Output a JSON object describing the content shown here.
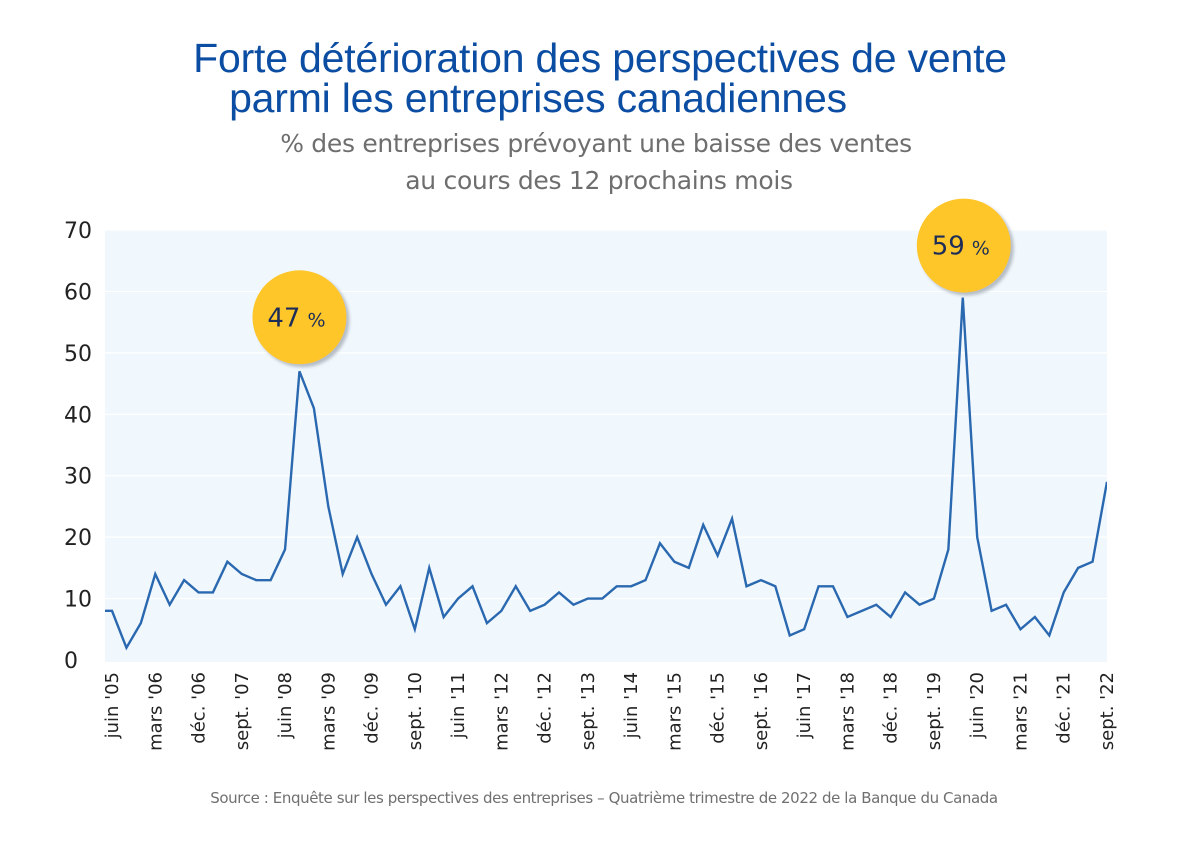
{
  "header": {
    "title_line1": "Forte détérioration des perspectives de vente",
    "title_line2": "parmi les entreprises canadiennes",
    "subtitle_line1": "% des entreprises prévoyant une baisse des ventes",
    "subtitle_line2": "au cours des 12 prochains mois"
  },
  "footer": {
    "source": "Source : Enquête sur les perspectives des entreprises – Quatrième trimestre de 2022 de la Banque du Canada"
  },
  "colors": {
    "title": "#0b4da2",
    "line": "#2a68b0",
    "plot_background": "#f1f8fd",
    "callout": "#ffc62c",
    "callout_text": "#1d2d57"
  },
  "chart_data": {
    "type": "line",
    "title": "Forte détérioration des perspectives de vente parmi les entreprises canadiennes",
    "subtitle": "% des entreprises prévoyant une baisse des ventes au cours des 12 prochains mois",
    "xlabel": "",
    "ylabel": "",
    "ylim": [
      0,
      70
    ],
    "yticks": [
      "0",
      "10",
      "20",
      "30",
      "40",
      "50",
      "60",
      "70"
    ],
    "grid": true,
    "legend": "none",
    "frequency": "quarterly",
    "leading_clipped_value": 8,
    "x": [
      "juin '05",
      "sept. '05",
      "déc. '05",
      "mars '06",
      "juin '06",
      "sept. '06",
      "déc. '06",
      "mars '07",
      "juin '07",
      "sept. '07",
      "déc. '07",
      "mars '08",
      "juin '08",
      "sept. '08",
      "déc. '08",
      "mars '09",
      "juin '09",
      "sept. '09",
      "déc. '09",
      "mars '10",
      "juin '10",
      "sept. '10",
      "déc. '10",
      "mars '11",
      "juin '11",
      "sept. '11",
      "déc. '11",
      "mars '12",
      "juin '12",
      "sept. '12",
      "déc. '12",
      "mars '13",
      "juin '13",
      "sept. '13",
      "déc. '13",
      "mars '14",
      "juin '14",
      "sept. '14",
      "déc. '14",
      "mars '15",
      "juin '15",
      "sept. '15",
      "déc. '15",
      "mars '16",
      "juin '16",
      "sept. '16",
      "déc. '16",
      "mars '17",
      "juin '17",
      "sept. '17",
      "déc. '17",
      "mars '18",
      "juin '18",
      "sept. '18",
      "déc. '18",
      "mars '19",
      "juin '19",
      "sept. '19",
      "déc. '19",
      "mars '20",
      "juin '20",
      "sept. '20",
      "déc. '20",
      "mars '21",
      "juin '21",
      "sept. '21",
      "déc. '21",
      "mars '22",
      "juin '22",
      "sept. '22"
    ],
    "series": [
      {
        "name": "% des entreprises prévoyant une baisse des ventes",
        "values": [
          8,
          2,
          6,
          14,
          9,
          13,
          11,
          11,
          16,
          14,
          13,
          13,
          18,
          47,
          41,
          25,
          14,
          20,
          14,
          9,
          12,
          5,
          15,
          7,
          10,
          12,
          6,
          8,
          12,
          8,
          9,
          11,
          9,
          10,
          10,
          12,
          12,
          13,
          19,
          16,
          15,
          22,
          17,
          23,
          12,
          13,
          12,
          4,
          5,
          12,
          12,
          7,
          8,
          9,
          7,
          11,
          9,
          10,
          18,
          59,
          20,
          8,
          9,
          5,
          7,
          4,
          11,
          15,
          16,
          29
        ]
      }
    ],
    "tick_labels_shown": [
      "juin '05",
      "mars '06",
      "déc. '06",
      "sept. '07",
      "juin '08",
      "mars '09",
      "déc. '09",
      "sept. '10",
      "juin '11",
      "mars '12",
      "déc. '12",
      "sept. '13",
      "juin '14",
      "mars '15",
      "déc. '15",
      "sept. '16",
      "juin '17",
      "mars '18",
      "déc. '18",
      "sept. '19",
      "juin '20",
      "mars '21",
      "déc. '21",
      "sept. '22"
    ],
    "annotations": [
      {
        "label_value": "47",
        "label_unit": "%",
        "at": "sept. '08",
        "value": 47
      },
      {
        "label_value": "59",
        "label_unit": "%",
        "at": "mars '20",
        "value": 59
      }
    ]
  }
}
